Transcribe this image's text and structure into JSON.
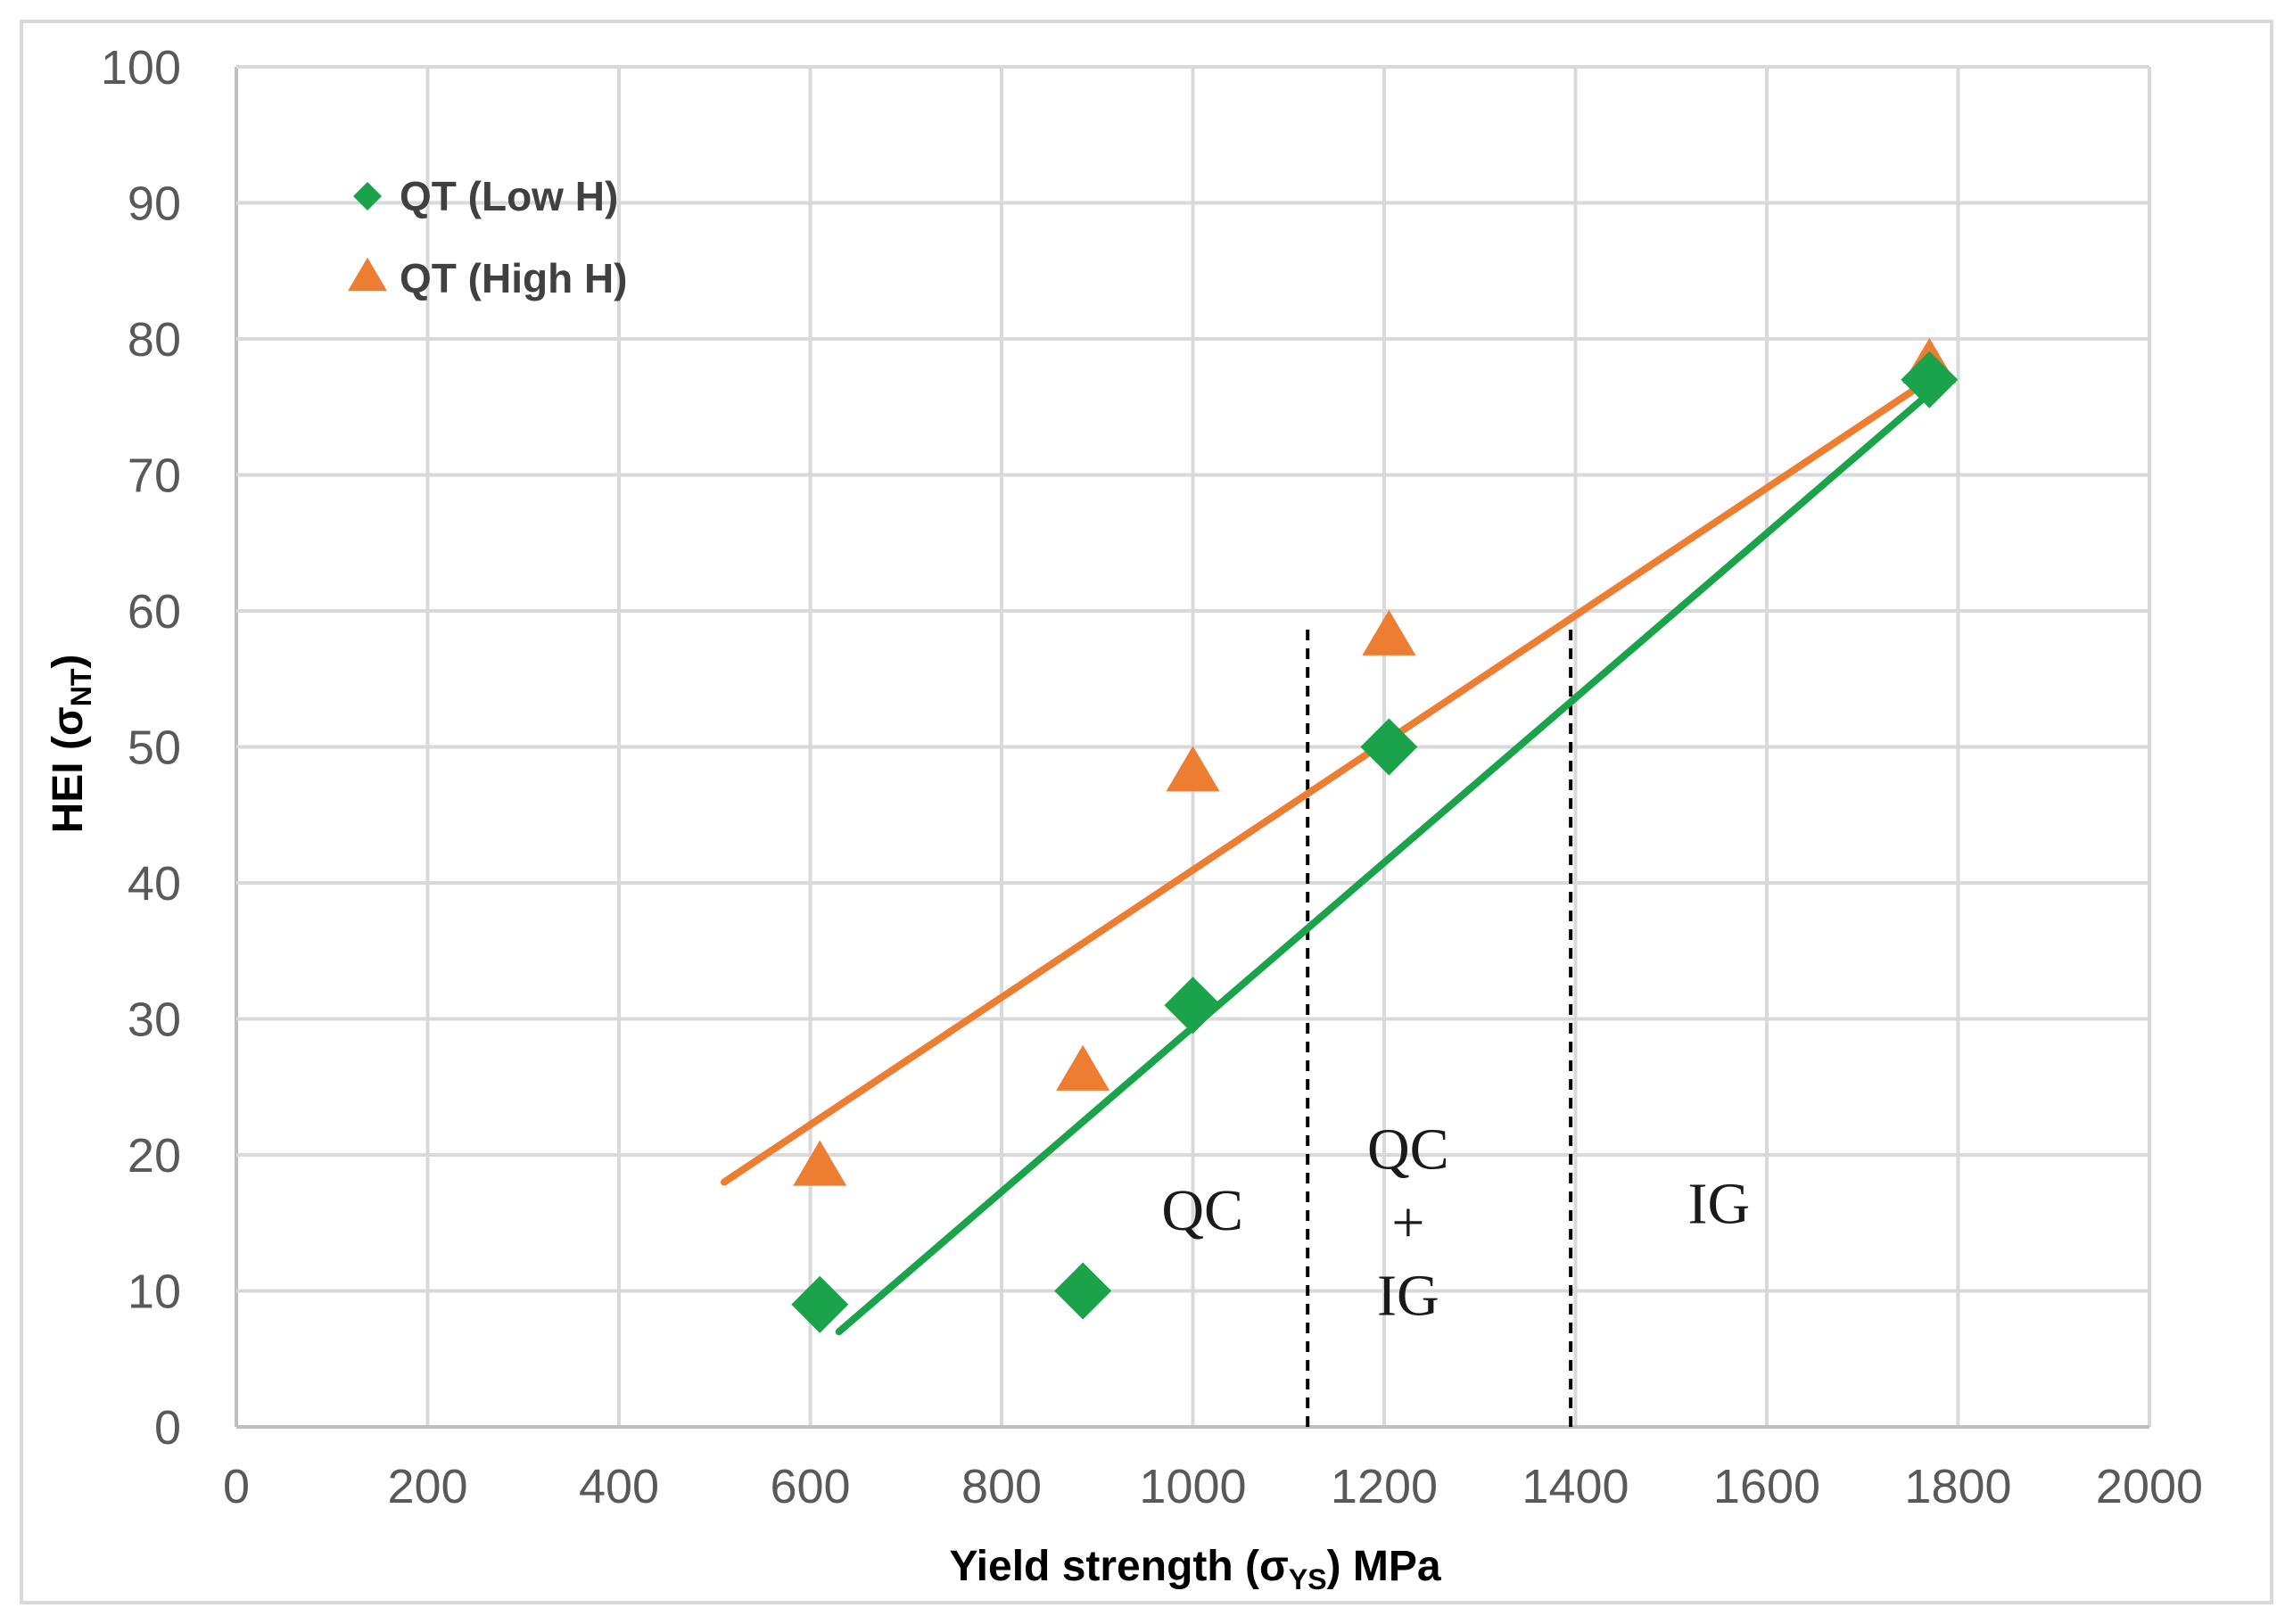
{
  "chart_data": {
    "type": "scatter",
    "title": "",
    "xlabel": {
      "main": "Yield strength (σ",
      "sub": "YS",
      "tail": ") MPa"
    },
    "ylabel": {
      "main": "HEI (σ",
      "sub": "NT",
      "tail": ")"
    },
    "xlim": [
      0,
      2000
    ],
    "ylim": [
      0,
      100
    ],
    "x_ticks": [
      0,
      200,
      400,
      600,
      800,
      1000,
      1200,
      1400,
      1600,
      1800,
      2000
    ],
    "y_ticks": [
      0,
      10,
      20,
      30,
      40,
      50,
      60,
      70,
      80,
      90,
      100
    ],
    "grid": true,
    "legend_position": "top-left",
    "series": [
      {
        "name": "QT (Low H)",
        "marker": "diamond",
        "color": "#1aa34a",
        "points": [
          {
            "x": 610,
            "y": 9
          },
          {
            "x": 885,
            "y": 10
          },
          {
            "x": 1000,
            "y": 31
          },
          {
            "x": 1205,
            "y": 50
          },
          {
            "x": 1770,
            "y": 77
          }
        ],
        "trendline": {
          "x": [
            630,
            1770
          ],
          "y": [
            7,
            76
          ]
        }
      },
      {
        "name": "QT (High H)",
        "marker": "triangle",
        "color": "#ed7d31",
        "points": [
          {
            "x": 610,
            "y": 19
          },
          {
            "x": 885,
            "y": 26
          },
          {
            "x": 1000,
            "y": 48
          },
          {
            "x": 1205,
            "y": 58
          },
          {
            "x": 1770,
            "y": 78
          }
        ],
        "trendline": {
          "x": [
            510,
            1770
          ],
          "y": [
            18,
            77
          ]
        }
      }
    ],
    "reference_lines": [
      {
        "x": 1120,
        "y_range": [
          0,
          59
        ],
        "style": "dashed",
        "color": "#000000"
      },
      {
        "x": 1395,
        "y_range": [
          0,
          59
        ],
        "style": "dashed",
        "color": "#000000"
      }
    ],
    "annotations": [
      {
        "name": "qc",
        "lines": [
          "QC"
        ],
        "x": 1010,
        "y": 14.5
      },
      {
        "name": "qc-ig",
        "lines": [
          "QC",
          "+",
          "IG"
        ],
        "x": 1225,
        "y": 19
      },
      {
        "name": "ig",
        "lines": [
          "IG"
        ],
        "x": 1550,
        "y": 15
      }
    ]
  },
  "colors": {
    "background": "#ffffff",
    "border": "#d9d9d9",
    "grid": "#d9d9d9",
    "axis": "#bfbfbf",
    "tick_text": "#595959"
  }
}
